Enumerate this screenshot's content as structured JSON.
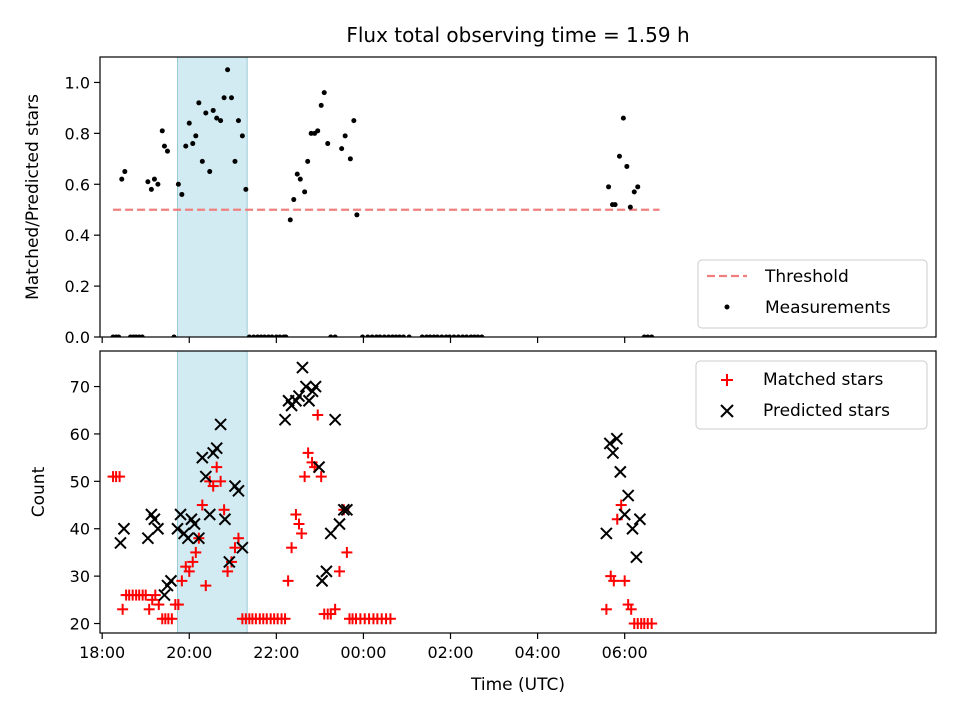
{
  "chart_data": [
    {
      "type": "scatter",
      "title": "Flux total observing time = 1.59 h",
      "xlabel": "",
      "ylabel": "Matched/Predicted stars",
      "xlim": [
        -0.05,
        19.15
      ],
      "ylim": [
        0,
        1.1
      ],
      "yticks": [
        0.0,
        0.2,
        0.4,
        0.6,
        0.8,
        1.0
      ],
      "ytick_labels": [
        "0.0",
        "0.2",
        "0.4",
        "0.6",
        "0.8",
        "1.0"
      ],
      "xticks": [
        0,
        2,
        4,
        6,
        8,
        10,
        12
      ],
      "shaded_region": [
        1.73,
        3.33
      ],
      "shaded_color": "#add8e6",
      "legend_position": "lower-right",
      "series": [
        {
          "name": "Threshold",
          "kind": "dashed-line",
          "color": "#f08080",
          "x": [
            0.25,
            12.8
          ],
          "y": [
            0.5,
            0.5
          ]
        },
        {
          "name": "Measurements",
          "kind": "dot",
          "color": "#000000",
          "x": [
            0.25,
            0.32,
            0.38,
            0.45,
            0.52,
            0.65,
            0.72,
            0.78,
            0.85,
            0.92,
            1.05,
            1.13,
            1.2,
            1.28,
            1.38,
            1.43,
            1.5,
            1.65,
            1.75,
            1.83,
            1.92,
            2.0,
            2.08,
            2.15,
            2.22,
            2.3,
            2.38,
            2.47,
            2.55,
            2.63,
            2.72,
            2.8,
            2.88,
            2.97,
            3.05,
            3.13,
            3.22,
            3.3,
            3.38,
            3.48,
            3.57,
            3.65,
            3.73,
            3.82,
            3.9,
            4.0,
            4.08,
            4.17,
            4.22,
            4.32,
            4.4,
            4.48,
            4.55,
            4.65,
            4.72,
            4.8,
            4.88,
            4.95,
            5.03,
            5.1,
            5.18,
            5.25,
            5.35,
            5.5,
            5.58,
            5.7,
            5.78,
            5.85,
            5.98,
            6.1,
            6.2,
            6.3,
            6.38,
            6.48,
            6.58,
            6.67,
            6.75,
            6.83,
            6.92,
            7.05,
            7.35,
            7.45,
            7.53,
            7.62,
            7.7,
            7.8,
            7.9,
            7.98,
            8.08,
            8.18,
            8.28,
            8.37,
            8.47,
            8.55,
            8.63,
            8.72,
            11.63,
            11.72,
            11.78,
            11.88,
            11.97,
            12.05,
            12.13,
            12.22,
            12.3,
            12.45,
            12.53,
            12.62
          ],
          "y": [
            0,
            0,
            0,
            0.62,
            0.65,
            0,
            0,
            0,
            0,
            0,
            0.61,
            0.58,
            0.62,
            0.6,
            0.81,
            0.75,
            0.73,
            0,
            0.6,
            0.56,
            0.75,
            0.84,
            0.76,
            0.79,
            0.92,
            0.69,
            0.88,
            0.65,
            0.89,
            0.86,
            0.85,
            0.94,
            1.05,
            0.94,
            0.69,
            0.85,
            0.79,
            0.58,
            0,
            0,
            0,
            0,
            0,
            0,
            0,
            0,
            0,
            0,
            0,
            0.46,
            0.54,
            0.64,
            0.62,
            0.57,
            0.69,
            0.8,
            0.8,
            0.81,
            0.91,
            0.96,
            0.76,
            0,
            0,
            0.74,
            0.79,
            0.7,
            0.85,
            0.48,
            0,
            0,
            0,
            0,
            0,
            0,
            0,
            0,
            0,
            0,
            0,
            0,
            0,
            0,
            0,
            0,
            0,
            0,
            0,
            0,
            0,
            0,
            0,
            0,
            0,
            0,
            0,
            0,
            0.59,
            0.52,
            0.52,
            0.71,
            0.86,
            0.67,
            0.51,
            0.57,
            0.59,
            0,
            0,
            0
          ]
        }
      ]
    },
    {
      "type": "scatter",
      "title": "",
      "xlabel": "Time (UTC)",
      "ylabel": "Count",
      "xlim": [
        -0.05,
        19.15
      ],
      "ylim": [
        18,
        77.5
      ],
      "yticks": [
        20,
        30,
        40,
        50,
        60,
        70
      ],
      "ytick_labels": [
        "20",
        "30",
        "40",
        "50",
        "60",
        "70"
      ],
      "xticks": [
        0,
        2,
        4,
        6,
        8,
        10,
        12
      ],
      "xtick_labels": [
        "18:00",
        "20:00",
        "22:00",
        "00:00",
        "02:00",
        "04:00",
        "06:00"
      ],
      "shaded_region": [
        1.73,
        3.33
      ],
      "shaded_color": "#add8e6",
      "legend_position": "upper-right",
      "series": [
        {
          "name": "Matched stars",
          "marker": "plus",
          "color": "#ff0000",
          "x": [
            0.25,
            0.32,
            0.4,
            0.47,
            0.55,
            0.62,
            0.7,
            0.78,
            0.85,
            0.93,
            1.0,
            1.08,
            1.15,
            1.22,
            1.3,
            1.38,
            1.45,
            1.52,
            1.6,
            1.68,
            1.75,
            1.83,
            1.92,
            2.0,
            2.08,
            2.15,
            2.22,
            2.3,
            2.38,
            2.47,
            2.55,
            2.63,
            2.72,
            2.8,
            2.88,
            2.97,
            3.05,
            3.13,
            3.22,
            3.3,
            3.38,
            3.45,
            3.53,
            3.62,
            3.7,
            3.78,
            3.87,
            3.95,
            4.03,
            4.12,
            4.2,
            4.27,
            4.35,
            4.45,
            4.52,
            4.58,
            4.65,
            4.73,
            4.82,
            4.88,
            4.95,
            5.03,
            5.1,
            5.18,
            5.25,
            5.35,
            5.45,
            5.55,
            5.62,
            5.68,
            5.75,
            5.83,
            5.93,
            6.03,
            6.13,
            6.23,
            6.32,
            6.42,
            6.52,
            6.62,
            11.58,
            11.68,
            11.75,
            11.83,
            11.92,
            12.0,
            12.08,
            12.15,
            12.22,
            12.3,
            12.38,
            12.45,
            12.53,
            12.62
          ],
          "y": [
            51,
            51,
            51,
            23,
            26,
            26,
            26,
            26,
            26,
            26,
            26,
            23,
            25,
            26,
            24,
            21,
            21,
            21,
            21,
            24,
            24,
            29,
            32,
            31,
            33,
            35,
            38,
            45,
            28,
            50,
            49,
            53,
            50,
            44,
            31,
            33,
            36,
            38,
            21,
            21,
            21,
            21,
            21,
            21,
            21,
            21,
            21,
            21,
            21,
            21,
            21,
            29,
            36,
            43,
            41,
            39,
            51,
            56,
            54,
            53,
            64,
            51,
            22,
            22,
            22,
            23,
            31,
            44,
            35,
            21,
            21,
            21,
            21,
            21,
            21,
            21,
            21,
            21,
            21,
            21,
            23,
            30,
            29,
            42,
            45,
            29,
            24,
            23,
            20,
            20,
            20,
            20,
            20,
            20
          ]
        },
        {
          "name": "Predicted stars",
          "marker": "x",
          "color": "#000000",
          "x": [
            0.42,
            0.5,
            1.05,
            1.13,
            1.2,
            1.28,
            1.43,
            1.5,
            1.58,
            1.73,
            1.8,
            1.88,
            1.97,
            2.05,
            2.12,
            2.22,
            2.3,
            2.38,
            2.47,
            2.55,
            2.63,
            2.72,
            2.82,
            2.92,
            3.05,
            3.13,
            3.22,
            4.2,
            4.28,
            4.35,
            4.45,
            4.52,
            4.6,
            4.68,
            4.75,
            4.83,
            4.9,
            4.98,
            5.05,
            5.15,
            5.25,
            5.35,
            5.45,
            5.55,
            5.62,
            11.58,
            11.66,
            11.73,
            11.82,
            11.9,
            12.0,
            12.08,
            12.18,
            12.27,
            12.35
          ],
          "y": [
            37,
            40,
            38,
            43,
            42,
            40,
            26,
            28,
            29,
            40,
            43,
            39,
            38,
            42,
            41,
            38,
            55,
            51,
            43,
            56,
            57,
            62,
            42,
            33,
            49,
            48,
            36,
            63,
            67,
            66,
            67,
            68,
            74,
            70,
            67,
            69,
            70,
            53,
            29,
            31,
            39,
            63,
            41,
            44,
            44,
            39,
            58,
            56,
            59,
            52,
            43,
            47,
            40,
            34,
            42
          ]
        }
      ]
    }
  ]
}
